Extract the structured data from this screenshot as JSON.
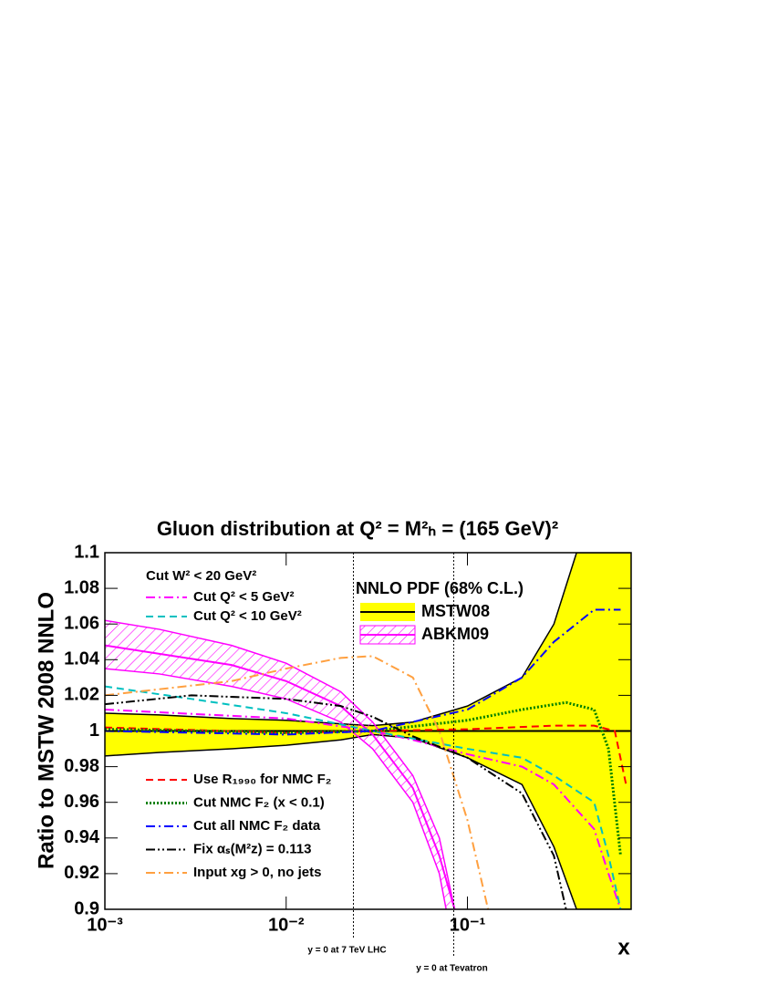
{
  "chart_data": {
    "type": "line",
    "title": "Gluon distribution at Q² = M²ₕ = (165 GeV)²",
    "ylabel": "Ratio to MSTW 2008 NNLO",
    "xlabel": "x",
    "xscale": "log",
    "xlim": [
      0.001,
      0.8
    ],
    "ylim": [
      0.9,
      1.1
    ],
    "xticks": [
      {
        "value": 0.001,
        "label": "10⁻³"
      },
      {
        "value": 0.01,
        "label": "10⁻²"
      },
      {
        "value": 0.1,
        "label": "10⁻¹"
      }
    ],
    "yticks": [
      0.9,
      0.92,
      0.94,
      0.96,
      0.98,
      1,
      1.02,
      1.04,
      1.06,
      1.08,
      1.1
    ],
    "legend_header": "Cut W² < 20 GeV²",
    "band_legend_title": "NNLO PDF (68% C.L.)",
    "bands": [
      {
        "name": "MSTW08",
        "color": "#ffff00",
        "line_color": "#000000",
        "hatch": false,
        "x": [
          0.001,
          0.002,
          0.005,
          0.01,
          0.02,
          0.03,
          0.05,
          0.1,
          0.2,
          0.3,
          0.4,
          0.8
        ],
        "upper": [
          1.01,
          1.009,
          1.007,
          1.006,
          1.004,
          1.003,
          1.005,
          1.014,
          1.03,
          1.06,
          1.1,
          1.1
        ],
        "lower": [
          0.986,
          0.988,
          0.99,
          0.992,
          0.995,
          0.998,
          0.996,
          0.985,
          0.97,
          0.935,
          0.9,
          0.9
        ],
        "central_x": [
          0.001,
          0.8
        ],
        "central": [
          1,
          1
        ]
      },
      {
        "name": "ABKM09",
        "color": "#ff00ff",
        "line_color": "#ff00ff",
        "hatch": true,
        "x": [
          0.001,
          0.002,
          0.005,
          0.01,
          0.02,
          0.03,
          0.05,
          0.07,
          0.085
        ],
        "upper": [
          1.062,
          1.057,
          1.048,
          1.038,
          1.022,
          1.005,
          0.975,
          0.94,
          0.9
        ],
        "lower": [
          1.035,
          1.032,
          1.025,
          1.018,
          1.005,
          0.99,
          0.96,
          0.92,
          0.875
        ],
        "central_x": [
          0.001,
          0.005,
          0.01,
          0.02,
          0.03,
          0.05,
          0.07,
          0.085
        ],
        "central": [
          1.048,
          1.037,
          1.028,
          1.014,
          0.998,
          0.968,
          0.93,
          0.9
        ]
      }
    ],
    "series": [
      {
        "name": "Cut Q² < 5 GeV²",
        "color": "#ff00ff",
        "style": "dash-dot",
        "x": [
          0.001,
          0.01,
          0.03,
          0.05,
          0.1,
          0.2,
          0.3,
          0.5,
          0.6,
          0.7
        ],
        "values": [
          1.012,
          1.007,
          1.0,
          0.995,
          0.987,
          0.98,
          0.97,
          0.945,
          0.92,
          0.9
        ]
      },
      {
        "name": "Cut Q² < 10 GeV²",
        "color": "#00c0c0",
        "style": "dashed",
        "x": [
          0.001,
          0.003,
          0.01,
          0.03,
          0.1,
          0.2,
          0.3,
          0.5,
          0.6,
          0.7
        ],
        "values": [
          1.025,
          1.018,
          1.01,
          1.0,
          0.99,
          0.985,
          0.975,
          0.96,
          0.93,
          0.9
        ]
      },
      {
        "name": "Use R₁₉₉₀ for NMC F₂",
        "color": "#ff0000",
        "style": "dashed",
        "x": [
          0.001,
          0.01,
          0.03,
          0.1,
          0.3,
          0.5,
          0.65,
          0.75
        ],
        "values": [
          1.002,
          0.999,
          1.0,
          1.001,
          1.003,
          1.003,
          1.0,
          0.97
        ]
      },
      {
        "name": "Cut NMC F₂ (x < 0.1)",
        "color": "#008000",
        "style": "dotted",
        "x": [
          0.001,
          0.01,
          0.03,
          0.1,
          0.2,
          0.35,
          0.5,
          0.6,
          0.7
        ],
        "values": [
          1.001,
          0.999,
          1.0,
          1.006,
          1.012,
          1.016,
          1.012,
          0.99,
          0.93
        ]
      },
      {
        "name": "Cut all NMC F₂ data",
        "color": "#0000ff",
        "style": "dash-dot",
        "x": [
          0.001,
          0.01,
          0.03,
          0.1,
          0.2,
          0.3,
          0.5,
          0.7
        ],
        "values": [
          1.0,
          0.998,
          1.0,
          1.012,
          1.03,
          1.05,
          1.068,
          1.068
        ]
      },
      {
        "name": "Fix αₛ(M²ᴢ) = 0.113",
        "color": "#000000",
        "style": "dash-dot-dot",
        "x": [
          0.001,
          0.003,
          0.01,
          0.02,
          0.03,
          0.05,
          0.1,
          0.2,
          0.3,
          0.35
        ],
        "values": [
          1.015,
          1.02,
          1.018,
          1.014,
          1.008,
          0.997,
          0.985,
          0.965,
          0.93,
          0.9
        ]
      },
      {
        "name": "Input xg > 0, no jets",
        "color": "#ffa040",
        "style": "dash-dot",
        "x": [
          0.001,
          0.005,
          0.01,
          0.02,
          0.03,
          0.05,
          0.07,
          0.1,
          0.13
        ],
        "values": [
          1.02,
          1.028,
          1.035,
          1.041,
          1.042,
          1.03,
          1.0,
          0.95,
          0.9
        ]
      }
    ],
    "reference_lines": [
      {
        "x": 0.0235,
        "label": "y = 0 at 7 TeV LHC"
      },
      {
        "x": 0.084,
        "label": "y = 0 at Tevatron"
      }
    ]
  }
}
